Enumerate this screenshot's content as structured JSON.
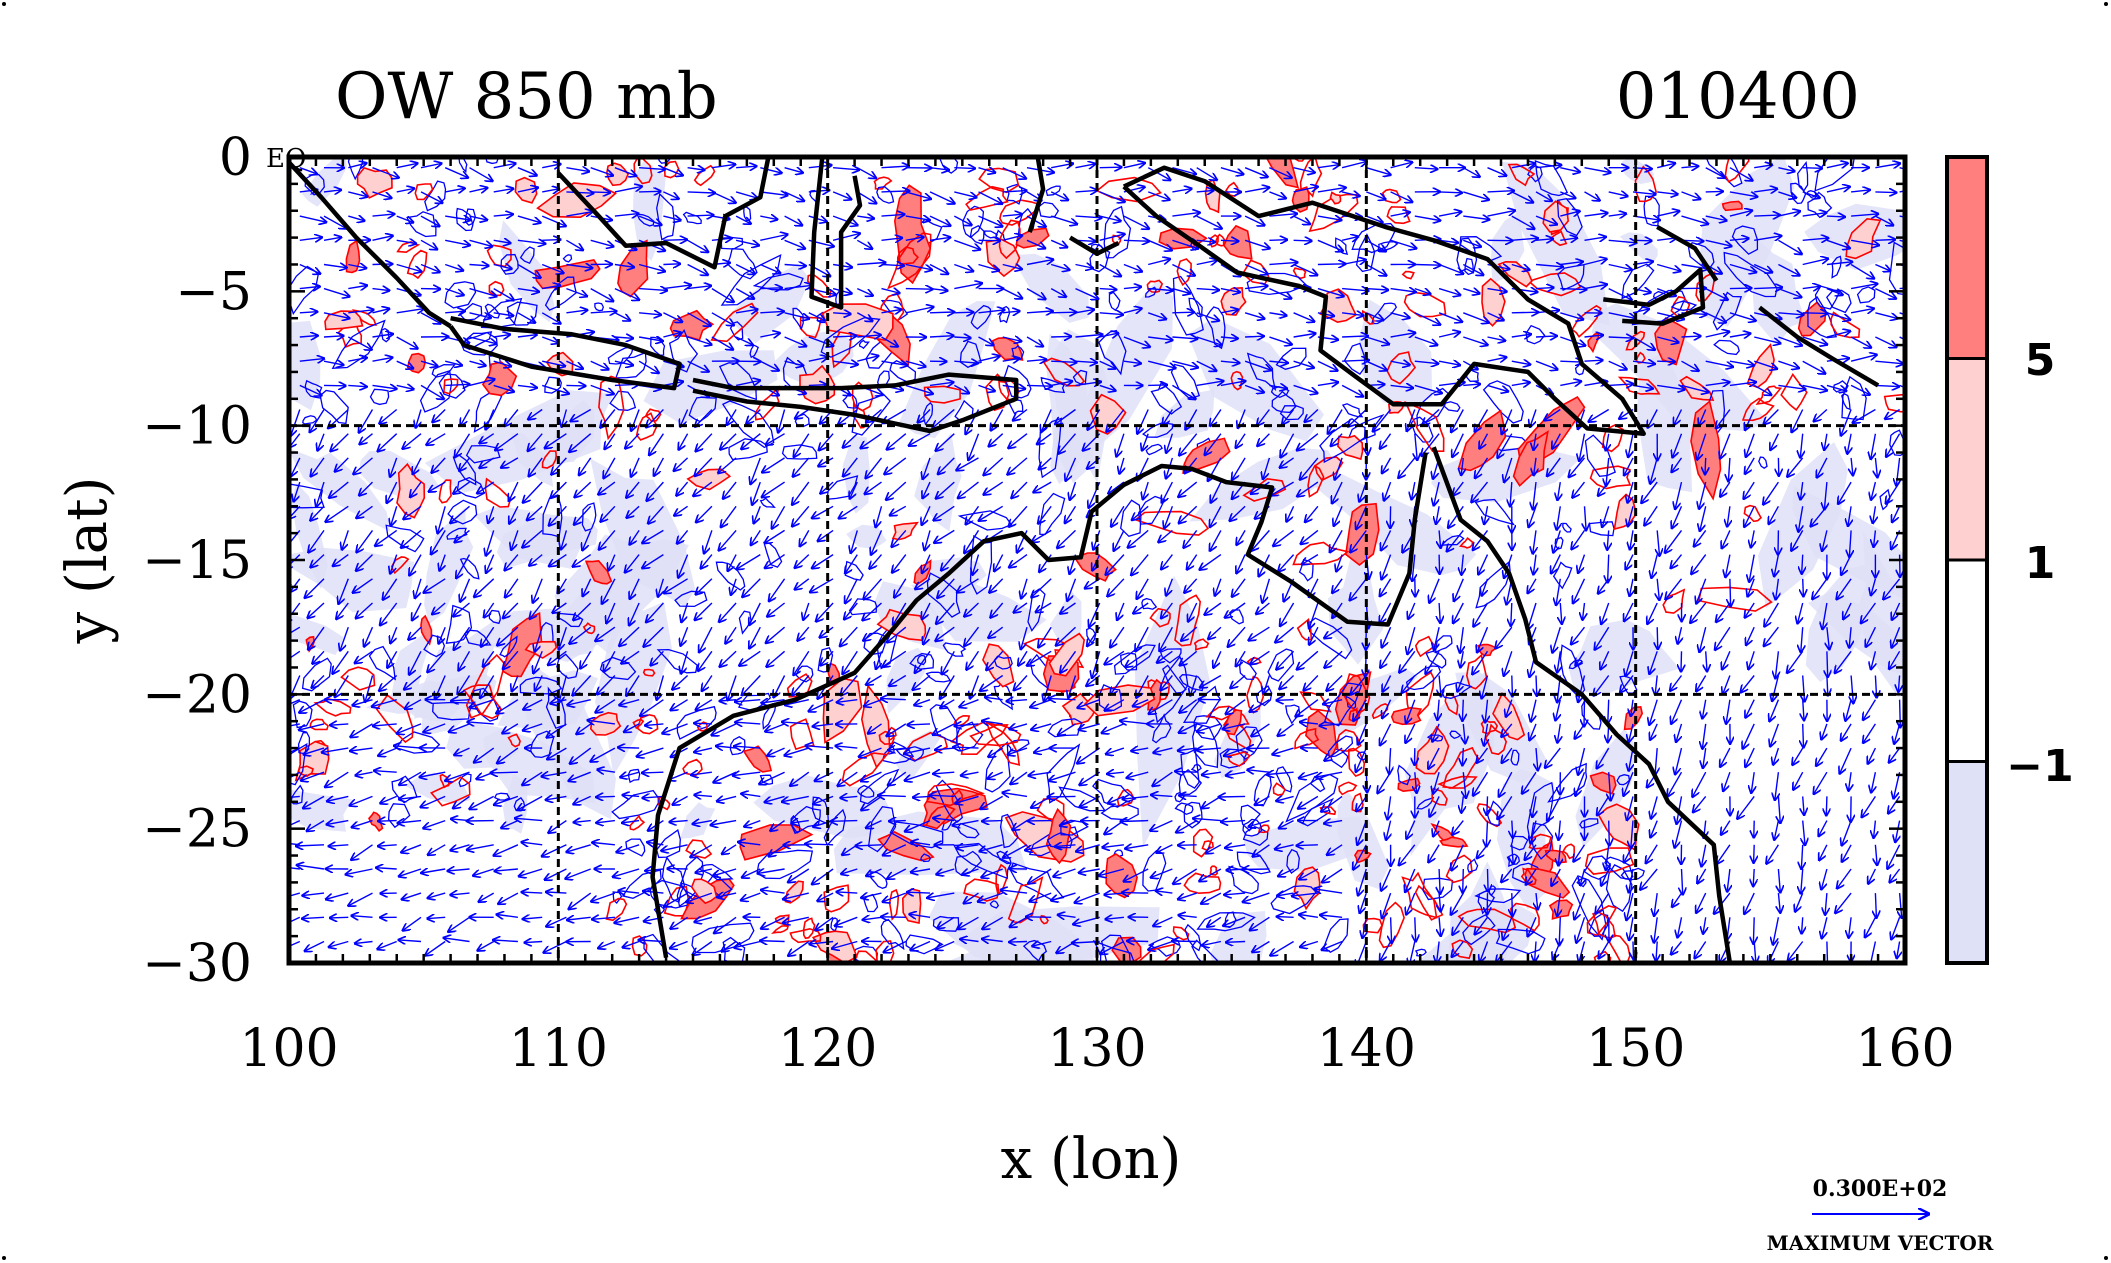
{
  "chart_data": {
    "type": "contour",
    "title_left": "OW 850 mb",
    "title_right": "010400",
    "xlabel": "x (lon)",
    "ylabel": "y (lat)",
    "xlim": [
      100,
      160
    ],
    "ylim": [
      -30,
      0
    ],
    "x_ticks": [
      100,
      110,
      120,
      130,
      140,
      150,
      160
    ],
    "y_ticks": [
      0,
      -5,
      -10,
      -15,
      -20,
      -25,
      -30
    ],
    "x_tick_labels": [
      "100",
      "110",
      "120",
      "130",
      "140",
      "150",
      "160"
    ],
    "y_tick_labels": [
      "0",
      "−5",
      "−10",
      "−15",
      "−20",
      "−25",
      "−30"
    ],
    "gridlines_x": [
      110,
      120,
      130,
      140,
      150
    ],
    "gridlines_y": [
      -10,
      -20
    ],
    "grid_style": "dashed",
    "corner_label": "EQ",
    "colorbar": {
      "levels": [
        "5",
        "1",
        "−1"
      ],
      "level_values": [
        5,
        1,
        -1
      ],
      "bands": [
        {
          "from": 5,
          "to": null,
          "color": "#ff7f7f"
        },
        {
          "from": 1,
          "to": 5,
          "color": "#ffd0d0"
        },
        {
          "from": -1,
          "to": 1,
          "color": "#ffffff"
        },
        {
          "from": null,
          "to": -1,
          "color": "#dfe1f7"
        }
      ]
    },
    "contour_colors": {
      "positive": "#ff0000",
      "negative": "#0000ff"
    },
    "coastline_color": "#000000",
    "vector_color": "#0000ff",
    "vector_legend": {
      "value_label": "0.300E+02",
      "caption": "MAXIMUM VECTOR",
      "value": 30
    },
    "coastlines": [
      {
        "name": "sumatra",
        "points": [
          [
            100,
            -0.2
          ],
          [
            101.2,
            -1.5
          ],
          [
            102.5,
            -3
          ],
          [
            104,
            -4.5
          ],
          [
            105.2,
            -5.8
          ],
          [
            106,
            -6.3
          ]
        ]
      },
      {
        "name": "borneo",
        "points": [
          [
            110,
            -0.6
          ],
          [
            111.5,
            -2.2
          ],
          [
            112.5,
            -3.3
          ],
          [
            114,
            -3.2
          ],
          [
            115.8,
            -4.1
          ],
          [
            116.2,
            -2.2
          ],
          [
            117.5,
            -1.5
          ],
          [
            117.8,
            0
          ]
        ]
      },
      {
        "name": "sulawesi",
        "points": [
          [
            119.8,
            0
          ],
          [
            119.5,
            -2.8
          ],
          [
            119.4,
            -5.2
          ],
          [
            120.5,
            -5.6
          ],
          [
            120.5,
            -2.8
          ],
          [
            121.2,
            -1.8
          ],
          [
            121,
            -0.7
          ]
        ]
      },
      {
        "name": "java",
        "points": [
          [
            106,
            -6
          ],
          [
            108,
            -6.4
          ],
          [
            110.5,
            -6.6
          ],
          [
            112.5,
            -7
          ],
          [
            114.5,
            -7.7
          ],
          [
            114.3,
            -8.6
          ],
          [
            112,
            -8.3
          ],
          [
            109,
            -7.8
          ],
          [
            106.5,
            -7
          ],
          [
            106,
            -6.3
          ]
        ]
      },
      {
        "name": "lesser-sunda",
        "points": [
          [
            115,
            -8.3
          ],
          [
            116.5,
            -8.6
          ],
          [
            118.5,
            -8.6
          ],
          [
            120.5,
            -8.6
          ],
          [
            122.5,
            -8.5
          ],
          [
            124.5,
            -8.1
          ],
          [
            127,
            -8.3
          ],
          [
            127,
            -9
          ],
          [
            125,
            -9.8
          ],
          [
            123.8,
            -10.2
          ],
          [
            121,
            -9.6
          ],
          [
            119,
            -9.3
          ],
          [
            117,
            -9.1
          ],
          [
            115,
            -8.7
          ]
        ]
      },
      {
        "name": "australia-west-north",
        "points": [
          [
            114,
            -29.8
          ],
          [
            113.5,
            -26.8
          ],
          [
            113.7,
            -24.5
          ],
          [
            114.5,
            -22
          ],
          [
            116.5,
            -20.8
          ],
          [
            118.8,
            -20.2
          ],
          [
            121,
            -19.2
          ],
          [
            122.4,
            -17.6
          ],
          [
            123.3,
            -16.5
          ],
          [
            124.5,
            -15.5
          ],
          [
            125.8,
            -14.3
          ],
          [
            127.2,
            -14
          ],
          [
            128.2,
            -15
          ],
          [
            129.4,
            -14.9
          ],
          [
            129.8,
            -13.2
          ],
          [
            131,
            -12.2
          ],
          [
            132.4,
            -11.5
          ],
          [
            133.5,
            -11.6
          ],
          [
            134.8,
            -12.1
          ],
          [
            136.5,
            -12.3
          ],
          [
            136.1,
            -13.6
          ],
          [
            135.6,
            -14.8
          ],
          [
            137.2,
            -15.8
          ],
          [
            139.3,
            -17.3
          ],
          [
            140.8,
            -17.4
          ],
          [
            141.6,
            -15.5
          ],
          [
            141.8,
            -13.5
          ],
          [
            142.2,
            -11
          ]
        ]
      },
      {
        "name": "australia-east",
        "points": [
          [
            142.5,
            -10.8
          ],
          [
            143.5,
            -13.5
          ],
          [
            144.5,
            -14.3
          ],
          [
            145.3,
            -15.5
          ],
          [
            145.9,
            -17.2
          ],
          [
            146.3,
            -18.8
          ],
          [
            148,
            -20
          ],
          [
            149.3,
            -21.5
          ],
          [
            150.5,
            -22.6
          ],
          [
            151.2,
            -24
          ],
          [
            152.9,
            -25.6
          ],
          [
            153.1,
            -27.5
          ],
          [
            153.5,
            -30
          ]
        ]
      },
      {
        "name": "new-guinea",
        "points": [
          [
            131,
            -1.1
          ],
          [
            132.5,
            -0.4
          ],
          [
            134,
            -0.9
          ],
          [
            136,
            -2.2
          ],
          [
            138,
            -1.7
          ],
          [
            140.7,
            -2.6
          ],
          [
            142.5,
            -3.1
          ],
          [
            144.5,
            -3.8
          ],
          [
            146,
            -5.3
          ],
          [
            147.5,
            -6.2
          ],
          [
            148,
            -7.7
          ],
          [
            149.5,
            -9
          ],
          [
            150.3,
            -10.3
          ],
          [
            148.2,
            -10.1
          ],
          [
            147,
            -9
          ],
          [
            146,
            -8
          ],
          [
            144,
            -7.7
          ],
          [
            142.8,
            -9.2
          ],
          [
            141,
            -9.2
          ],
          [
            139.5,
            -8.1
          ],
          [
            138.3,
            -7.2
          ],
          [
            138.5,
            -5.2
          ],
          [
            137.5,
            -4.8
          ],
          [
            135.2,
            -4.3
          ],
          [
            133.8,
            -3.3
          ],
          [
            132.2,
            -2.2
          ],
          [
            131,
            -1.1
          ]
        ]
      },
      {
        "name": "new-britain",
        "points": [
          [
            148.8,
            -5.3
          ],
          [
            150.5,
            -5.5
          ],
          [
            151.5,
            -5
          ],
          [
            152.4,
            -4.2
          ],
          [
            152.5,
            -5.6
          ],
          [
            151,
            -6.2
          ],
          [
            149.5,
            -6.1
          ]
        ]
      },
      {
        "name": "new-ireland",
        "points": [
          [
            150.8,
            -2.6
          ],
          [
            152.2,
            -3.4
          ],
          [
            153,
            -4.6
          ]
        ]
      },
      {
        "name": "solomon",
        "points": [
          [
            154.6,
            -5.6
          ],
          [
            156,
            -6.7
          ],
          [
            157.3,
            -7.5
          ],
          [
            159,
            -8.5
          ]
        ]
      },
      {
        "name": "timor-small",
        "points": [
          [
            129,
            -3
          ],
          [
            130,
            -3.6
          ],
          [
            130.8,
            -3.2
          ]
        ]
      },
      {
        "name": "halmahera",
        "points": [
          [
            127.8,
            0
          ],
          [
            128,
            -1.2
          ],
          [
            127.5,
            -2.8
          ]
        ]
      }
    ]
  }
}
